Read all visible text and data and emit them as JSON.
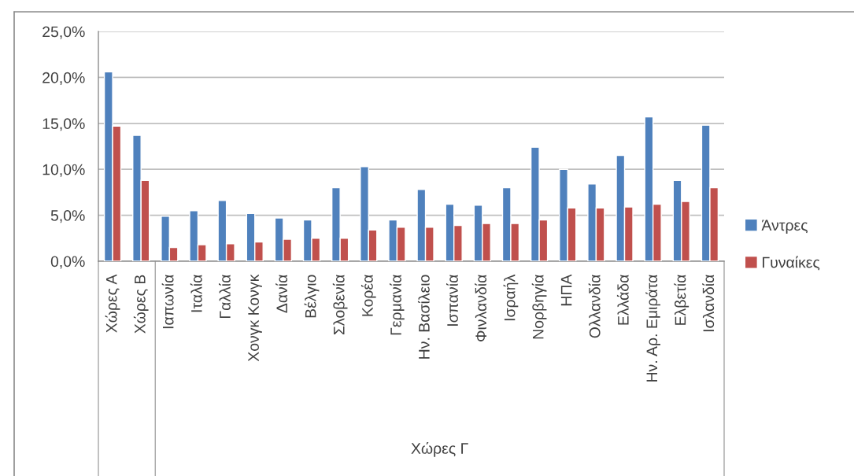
{
  "chart_data": {
    "type": "bar",
    "categories": [
      "Χώρες Α",
      "Χώρες Β",
      "Ιαπωνία",
      "Ιταλία",
      "Γαλλία",
      "Χονγκ Κονγκ",
      "Δανία",
      "Βέλγιο",
      "Σλοβενία",
      "Κορέα",
      "Γερμανία",
      "Ην. Βασίλειο",
      "Ισπανία",
      "Φινλανδία",
      "Ισραήλ",
      "Νορβηγία",
      "ΗΠΑ",
      "Ολλανδία",
      "Ελλάδα",
      "Ην. Αρ. Εμιράτα",
      "Ελβετία",
      "Ισλανδία"
    ],
    "series": [
      {
        "name": "Άντρες",
        "color": "#4f81bd",
        "values": [
          20.6,
          13.7,
          4.9,
          5.5,
          6.6,
          5.2,
          4.7,
          4.5,
          8.0,
          10.3,
          4.5,
          7.8,
          6.2,
          6.1,
          8.0,
          12.4,
          10.0,
          8.4,
          11.5,
          15.7,
          8.8,
          14.8
        ]
      },
      {
        "name": "Γυναίκες",
        "color": "#c0504d",
        "values": [
          14.7,
          8.8,
          1.5,
          1.8,
          1.9,
          2.1,
          2.4,
          2.5,
          2.5,
          3.4,
          3.7,
          3.7,
          3.9,
          4.1,
          4.1,
          4.5,
          5.8,
          5.8,
          5.9,
          6.2,
          6.5,
          8.0
        ]
      }
    ],
    "xlabel": "Χώρες Γ",
    "ylim": [
      0,
      25
    ],
    "yticks": [
      {
        "value": 0,
        "label": "0,0%"
      },
      {
        "value": 5,
        "label": "5,0%"
      },
      {
        "value": 10,
        "label": "10,0%"
      },
      {
        "value": 15,
        "label": "15,0%"
      },
      {
        "value": 20,
        "label": "20,0%"
      },
      {
        "value": 25,
        "label": "25,0%"
      }
    ],
    "grid": "y",
    "legend": "right"
  }
}
